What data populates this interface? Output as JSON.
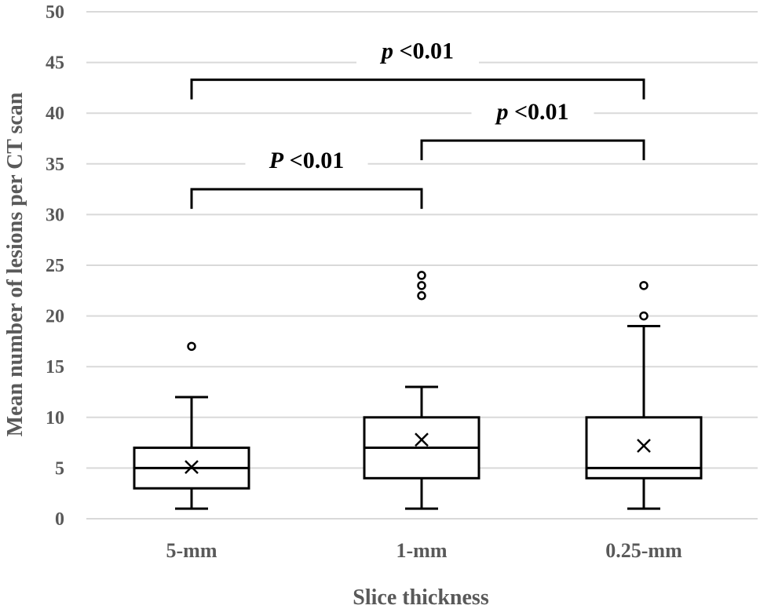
{
  "chart_data": {
    "type": "box",
    "xlabel": "Slice thickness",
    "ylabel": "Mean number of  lesions per CT scan",
    "ylim": [
      0,
      50
    ],
    "yticks": [
      0,
      5,
      10,
      15,
      20,
      25,
      30,
      35,
      40,
      45,
      50
    ],
    "grid": true,
    "categories": [
      "5-mm",
      "1-mm",
      "0.25-mm"
    ],
    "boxes": [
      {
        "category": "5-mm",
        "whisker_low": 1,
        "q1": 3,
        "median": 5,
        "q3": 7,
        "whisker_high": 12,
        "mean": 5.1,
        "outliers": [
          17
        ]
      },
      {
        "category": "1-mm",
        "whisker_low": 1,
        "q1": 4,
        "median": 7,
        "q3": 10,
        "whisker_high": 13,
        "mean": 7.8,
        "outliers": [
          22,
          23,
          24
        ]
      },
      {
        "category": "0.25-mm",
        "whisker_low": 1,
        "q1": 4,
        "median": 5,
        "q3": 10,
        "whisker_high": 19,
        "mean": 7.2,
        "outliers": [
          20,
          23
        ]
      }
    ],
    "annotations": [
      {
        "from": "5-mm",
        "to": "1-mm",
        "y": 32.5,
        "letter": "P",
        "text": "<0.01"
      },
      {
        "from": "1-mm",
        "to": "0.25-mm",
        "y": 37.3,
        "letter": "p",
        "text": "<0.01"
      },
      {
        "from": "5-mm",
        "to": "0.25-mm",
        "y": 43.3,
        "letter": "p",
        "text": "<0.01"
      }
    ]
  }
}
